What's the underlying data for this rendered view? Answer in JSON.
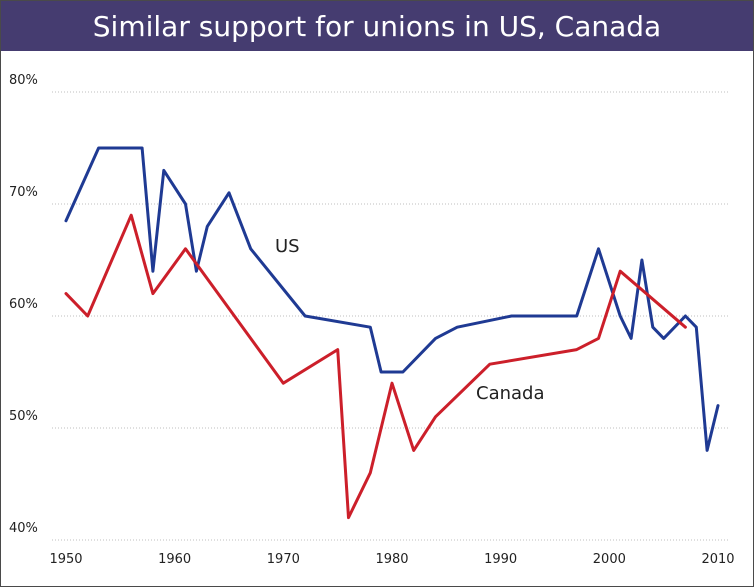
{
  "chart_data": {
    "type": "line",
    "title": "Similar support for unions in US, Canada",
    "xlabel": "",
    "ylabel": "",
    "xlim": [
      1950,
      2010
    ],
    "ylim": [
      40,
      80
    ],
    "x_ticks": [
      "1950",
      "1960",
      "1970",
      "1980",
      "1990",
      "2000",
      "2010"
    ],
    "y_ticks": [
      "40%",
      "50%",
      "60%",
      "70%",
      "80%"
    ],
    "grid": true,
    "series": [
      {
        "name": "US",
        "color": "#1f3a93",
        "x": [
          1950,
          1953,
          1957,
          1958,
          1959,
          1961,
          1962,
          1963,
          1965,
          1967,
          1972,
          1978,
          1979,
          1981,
          1984,
          1986,
          1991,
          1997,
          1999,
          2001,
          2002,
          2003,
          2004,
          2005,
          2007,
          2008,
          2009,
          2010
        ],
        "y": [
          68.5,
          75,
          75,
          64,
          73,
          70,
          64,
          68,
          71,
          66,
          60,
          59,
          55,
          55,
          58,
          59,
          60,
          60,
          66,
          60,
          58,
          65,
          59,
          58,
          60,
          59,
          48,
          52
        ]
      },
      {
        "name": "Canada",
        "color": "#cc1f2a",
        "x": [
          1950,
          1952,
          1956,
          1958,
          1961,
          1970,
          1975,
          1976,
          1978,
          1980,
          1982,
          1984,
          1989,
          1997,
          1999,
          2001,
          2007
        ],
        "y": [
          62,
          60,
          69,
          62,
          66,
          54,
          57,
          42,
          46,
          54,
          48,
          51,
          55.7,
          57,
          58,
          64,
          59
        ]
      }
    ]
  }
}
